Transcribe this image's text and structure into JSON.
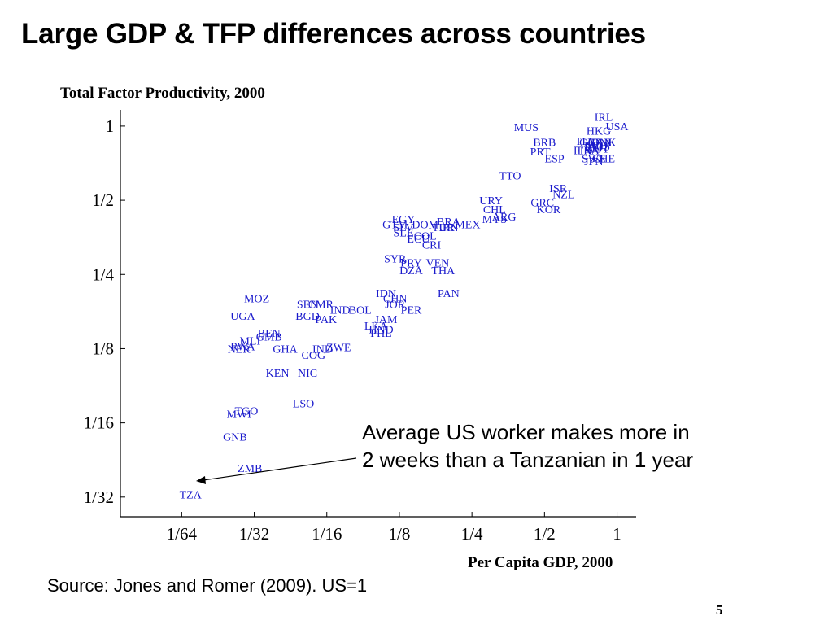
{
  "slide": {
    "title": "Large GDP & TFP differences across countries",
    "annotation_line1": "Average US worker makes more in",
    "annotation_line2": "2 weeks than a Tanzanian in 1 year",
    "source": "Source: Jones and Romer (2009). US=1",
    "page_number": "5"
  },
  "chart_data": {
    "type": "scatter",
    "title": "Total Factor Productivity, 2000",
    "xlabel": "Per Capita GDP, 2000",
    "ylabel": "",
    "x_scale": "log2",
    "y_scale": "log2",
    "xlim": [
      0.0087,
      1.2
    ],
    "ylim": [
      0.026,
      1.12
    ],
    "x_ticks": [
      {
        "value": 0.015625,
        "label": "1/64"
      },
      {
        "value": 0.03125,
        "label": "1/32"
      },
      {
        "value": 0.0625,
        "label": "1/16"
      },
      {
        "value": 0.125,
        "label": "1/8"
      },
      {
        "value": 0.25,
        "label": "1/4"
      },
      {
        "value": 0.5,
        "label": "1/2"
      },
      {
        "value": 1,
        "label": "1"
      }
    ],
    "y_ticks": [
      {
        "value": 1,
        "label": "1"
      },
      {
        "value": 0.5,
        "label": "1/2"
      },
      {
        "value": 0.25,
        "label": "1/4"
      },
      {
        "value": 0.125,
        "label": "1/8"
      },
      {
        "value": 0.0625,
        "label": "1/16"
      },
      {
        "value": 0.03125,
        "label": "1/32"
      }
    ],
    "point_color": "#1a1acc",
    "points": [
      {
        "label": "IRL",
        "x": 0.88,
        "y": 1.09
      },
      {
        "label": "USA",
        "x": 1.0,
        "y": 1.0
      },
      {
        "label": "HKG",
        "x": 0.84,
        "y": 0.96
      },
      {
        "label": "MUS",
        "x": 0.42,
        "y": 0.99
      },
      {
        "label": "BRB",
        "x": 0.5,
        "y": 0.86
      },
      {
        "label": "ITA",
        "x": 0.74,
        "y": 0.87
      },
      {
        "label": "GBR",
        "x": 0.78,
        "y": 0.86
      },
      {
        "label": "CAN",
        "x": 0.85,
        "y": 0.86
      },
      {
        "label": "DNK",
        "x": 0.88,
        "y": 0.86
      },
      {
        "label": "NLD",
        "x": 0.82,
        "y": 0.84
      },
      {
        "label": "AUS",
        "x": 0.84,
        "y": 0.83
      },
      {
        "label": "BEL",
        "x": 0.81,
        "y": 0.82
      },
      {
        "label": "AUT",
        "x": 0.83,
        "y": 0.81
      },
      {
        "label": "FIN",
        "x": 0.72,
        "y": 0.8
      },
      {
        "label": "FRA",
        "x": 0.76,
        "y": 0.8
      },
      {
        "label": "PRT",
        "x": 0.48,
        "y": 0.79
      },
      {
        "label": "ESP",
        "x": 0.55,
        "y": 0.74
      },
      {
        "label": "SWE",
        "x": 0.8,
        "y": 0.74
      },
      {
        "label": "CHE",
        "x": 0.88,
        "y": 0.74
      },
      {
        "label": "JPN",
        "x": 0.8,
        "y": 0.72
      },
      {
        "label": "TTO",
        "x": 0.36,
        "y": 0.63
      },
      {
        "label": "ISR",
        "x": 0.57,
        "y": 0.56
      },
      {
        "label": "NZL",
        "x": 0.6,
        "y": 0.53
      },
      {
        "label": "URY",
        "x": 0.3,
        "y": 0.5
      },
      {
        "label": "GRC",
        "x": 0.49,
        "y": 0.49
      },
      {
        "label": "KOR",
        "x": 0.52,
        "y": 0.46
      },
      {
        "label": "CHL",
        "x": 0.31,
        "y": 0.46
      },
      {
        "label": "ARG",
        "x": 0.34,
        "y": 0.43
      },
      {
        "label": "MYS",
        "x": 0.31,
        "y": 0.42
      },
      {
        "label": "EGY",
        "x": 0.13,
        "y": 0.42
      },
      {
        "label": "GTM",
        "x": 0.12,
        "y": 0.4
      },
      {
        "label": "SLV",
        "x": 0.13,
        "y": 0.39
      },
      {
        "label": "DOM",
        "x": 0.16,
        "y": 0.4
      },
      {
        "label": "BRA",
        "x": 0.2,
        "y": 0.41
      },
      {
        "label": "TUR",
        "x": 0.19,
        "y": 0.39
      },
      {
        "label": "IRN",
        "x": 0.2,
        "y": 0.39
      },
      {
        "label": "MEX",
        "x": 0.24,
        "y": 0.4
      },
      {
        "label": "SLE",
        "x": 0.13,
        "y": 0.37
      },
      {
        "label": "COL",
        "x": 0.16,
        "y": 0.36
      },
      {
        "label": "ECU",
        "x": 0.15,
        "y": 0.35
      },
      {
        "label": "CRI",
        "x": 0.17,
        "y": 0.33
      },
      {
        "label": "SYR",
        "x": 0.12,
        "y": 0.29
      },
      {
        "label": "PRY",
        "x": 0.14,
        "y": 0.28
      },
      {
        "label": "VEN",
        "x": 0.18,
        "y": 0.28
      },
      {
        "label": "DZA",
        "x": 0.14,
        "y": 0.26
      },
      {
        "label": "THA",
        "x": 0.19,
        "y": 0.26
      },
      {
        "label": "IDN",
        "x": 0.11,
        "y": 0.21
      },
      {
        "label": "CHN",
        "x": 0.12,
        "y": 0.2
      },
      {
        "label": "PAN",
        "x": 0.2,
        "y": 0.21
      },
      {
        "label": "JOR",
        "x": 0.12,
        "y": 0.19
      },
      {
        "label": "PER",
        "x": 0.14,
        "y": 0.18
      },
      {
        "label": "MOZ",
        "x": 0.032,
        "y": 0.2
      },
      {
        "label": "SEN",
        "x": 0.052,
        "y": 0.19
      },
      {
        "label": "CMR",
        "x": 0.059,
        "y": 0.19
      },
      {
        "label": "IND",
        "x": 0.071,
        "y": 0.18
      },
      {
        "label": "BOL",
        "x": 0.086,
        "y": 0.18
      },
      {
        "label": "UGA",
        "x": 0.028,
        "y": 0.17
      },
      {
        "label": "BGD",
        "x": 0.052,
        "y": 0.17
      },
      {
        "label": "PAK",
        "x": 0.062,
        "y": 0.165
      },
      {
        "label": "JAM",
        "x": 0.11,
        "y": 0.165
      },
      {
        "label": "LKA",
        "x": 0.1,
        "y": 0.155
      },
      {
        "label": "HND",
        "x": 0.105,
        "y": 0.15
      },
      {
        "label": "PHL",
        "x": 0.105,
        "y": 0.145
      },
      {
        "label": "BEN",
        "x": 0.036,
        "y": 0.145
      },
      {
        "label": "GMB",
        "x": 0.036,
        "y": 0.14
      },
      {
        "label": "MLI",
        "x": 0.03,
        "y": 0.135
      },
      {
        "label": "RWA",
        "x": 0.028,
        "y": 0.128
      },
      {
        "label": "NER",
        "x": 0.027,
        "y": 0.125
      },
      {
        "label": "GHA",
        "x": 0.042,
        "y": 0.125
      },
      {
        "label": "IND2",
        "x": 0.06,
        "y": 0.125
      },
      {
        "label": "ZWE",
        "x": 0.07,
        "y": 0.127
      },
      {
        "label": "COG",
        "x": 0.055,
        "y": 0.118
      },
      {
        "label": "KEN",
        "x": 0.039,
        "y": 0.1
      },
      {
        "label": "NIC",
        "x": 0.052,
        "y": 0.1
      },
      {
        "label": "LSO",
        "x": 0.05,
        "y": 0.075
      },
      {
        "label": "TGO",
        "x": 0.029,
        "y": 0.07
      },
      {
        "label": "MWI",
        "x": 0.027,
        "y": 0.068
      },
      {
        "label": "GNB",
        "x": 0.026,
        "y": 0.055
      },
      {
        "label": "ZMB",
        "x": 0.03,
        "y": 0.041
      },
      {
        "label": "TZA",
        "x": 0.017,
        "y": 0.032
      }
    ]
  }
}
